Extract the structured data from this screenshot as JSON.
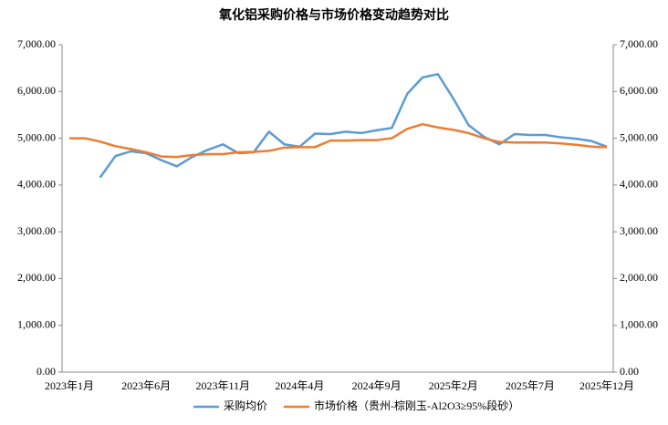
{
  "chart_data": {
    "type": "line",
    "title": "氧化铝采购价格与市场价格变动趋势对比",
    "categories": [
      "2023年1月",
      null,
      null,
      null,
      null,
      "2023年6月",
      null,
      null,
      null,
      null,
      "2023年11月",
      null,
      null,
      null,
      null,
      "2024年4月",
      null,
      null,
      null,
      null,
      "2024年9月",
      null,
      null,
      null,
      null,
      "2025年2月",
      null,
      null,
      null,
      null,
      "2025年7月",
      null,
      null,
      null,
      null,
      "2025年12月"
    ],
    "series": [
      {
        "name": "采购均价",
        "color": "#5b9bd5",
        "values": [
          null,
          null,
          4160,
          4620,
          4720,
          4680,
          4530,
          4400,
          4600,
          4750,
          4870,
          4680,
          4700,
          5140,
          4870,
          4820,
          5100,
          5090,
          5140,
          5110,
          5170,
          5220,
          5950,
          6300,
          6370,
          5850,
          5280,
          5030,
          4870,
          5090,
          5070,
          5070,
          5020,
          4990,
          4940,
          4820
        ]
      },
      {
        "name": "市场价格（贵州-棕刚玉-Al2O3≥95%段砂）",
        "color": "#ed7d31",
        "values": [
          5000,
          5000,
          4930,
          4830,
          4770,
          4700,
          4610,
          4600,
          4640,
          4660,
          4660,
          4700,
          4710,
          4730,
          4800,
          4810,
          4810,
          4950,
          4950,
          4960,
          4960,
          5000,
          5200,
          5300,
          5230,
          5180,
          5110,
          5000,
          4920,
          4910,
          4910,
          4910,
          4890,
          4860,
          4820,
          4810
        ]
      }
    ],
    "ylim": [
      0,
      7000
    ],
    "yticks": [
      {
        "value": 0,
        "label": "0.00"
      },
      {
        "value": 1000,
        "label": "1,000.00"
      },
      {
        "value": 2000,
        "label": "2,000.00"
      },
      {
        "value": 3000,
        "label": "3,000.00"
      },
      {
        "value": 4000,
        "label": "4,000.00"
      },
      {
        "value": 5000,
        "label": "5,000.00"
      },
      {
        "value": 6000,
        "label": "6,000.00"
      },
      {
        "value": 7000,
        "label": "7,000.00"
      }
    ],
    "y2lim": [
      0,
      7000
    ],
    "y2ticks": [
      {
        "value": 0,
        "label": "0.00"
      },
      {
        "value": 1000,
        "label": "1,000.00"
      },
      {
        "value": 2000,
        "label": "2,000.00"
      },
      {
        "value": 3000,
        "label": "3,000.00"
      },
      {
        "value": 4000,
        "label": "4,000.00"
      },
      {
        "value": 5000,
        "label": "5,000.00"
      },
      {
        "value": 6000,
        "label": "6,000.00"
      },
      {
        "value": 7000,
        "label": "7,000.00"
      }
    ],
    "legend": "bottom"
  }
}
